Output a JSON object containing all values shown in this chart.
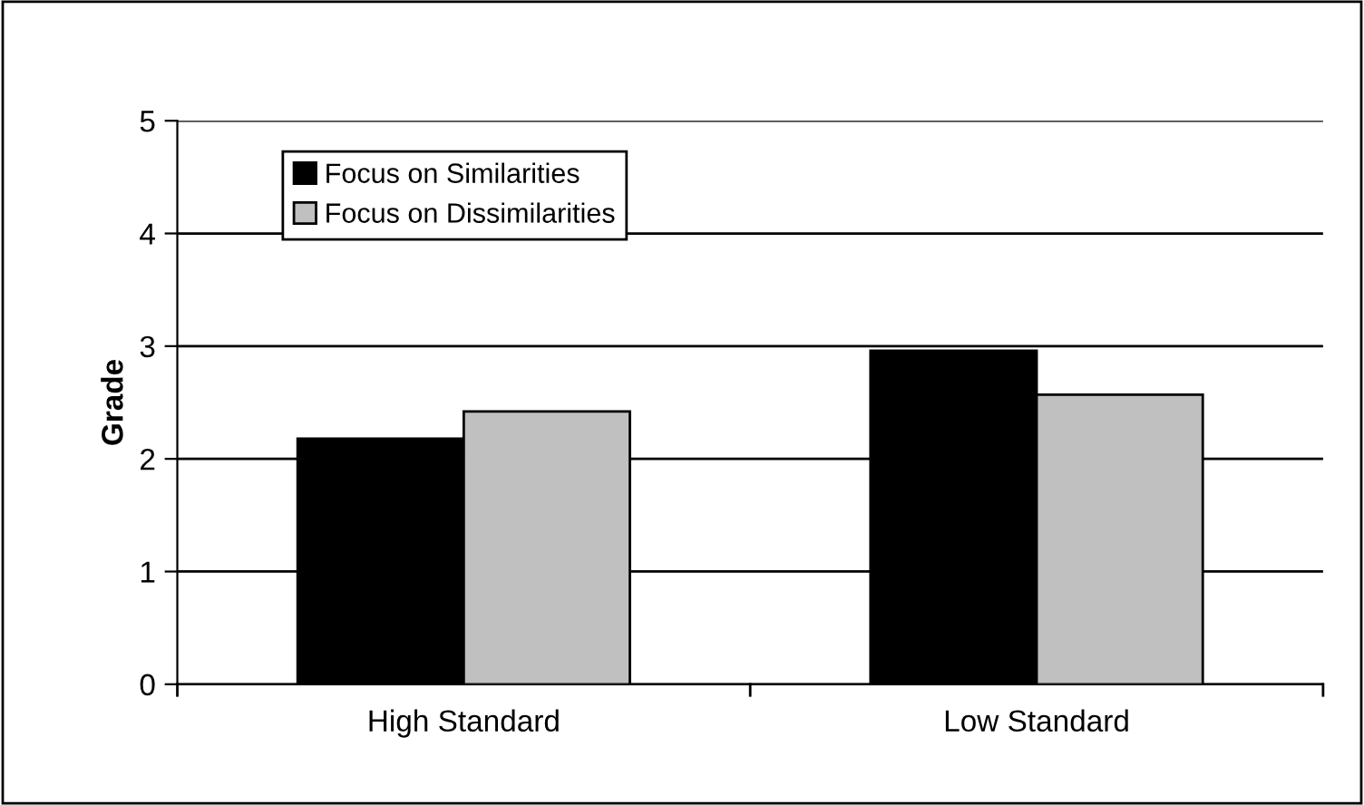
{
  "chart_data": {
    "type": "bar",
    "ylabel": "Grade",
    "categories": [
      "High Standard",
      "Low Standard"
    ],
    "series": [
      {
        "name": "Focus on Similarities",
        "color": "#000000",
        "values": [
          2.18,
          2.96
        ]
      },
      {
        "name": "Focus on Dissimilarities",
        "color": "#c0c0c0",
        "values": [
          2.42,
          2.57
        ]
      }
    ],
    "ylim": [
      0,
      5
    ],
    "yticks": [
      0,
      1,
      2,
      3,
      4,
      5
    ],
    "grid": "y",
    "legend": "top left"
  }
}
